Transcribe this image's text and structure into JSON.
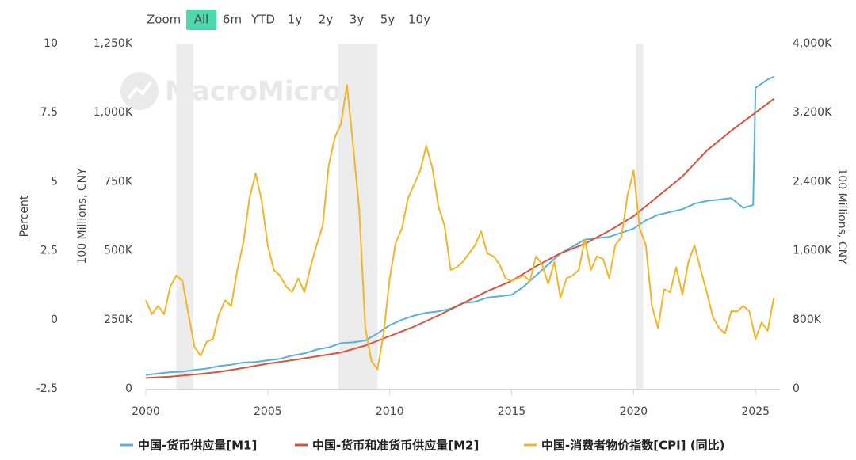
{
  "chart_data": {
    "type": "line",
    "zoom_label": "Zoom",
    "range_buttons": [
      "All",
      "6m",
      "YTD",
      "1y",
      "2y",
      "3y",
      "5y",
      "10y"
    ],
    "selected_button": 0,
    "selected_color": "#4fd8ab",
    "watermark": "MacroMicro",
    "xlim": [
      2000,
      2026
    ],
    "xticks": [
      2000,
      2005,
      2010,
      2015,
      2020,
      2025
    ],
    "ylim": [
      -2.5,
      10
    ],
    "yticks": [
      -2.5,
      0,
      2.5,
      5,
      7.5,
      10
    ],
    "y_label": "Percent",
    "y2lim": [
      0,
      1250000
    ],
    "y2ticks": [
      0,
      {
        "value": 250000,
        "label": "250K"
      },
      {
        "value": 500000,
        "label": "500K"
      },
      {
        "value": 750000,
        "label": "750K"
      },
      {
        "value": 1000000,
        "label": "1,000K"
      },
      {
        "value": 1250000,
        "label": "1,250K"
      }
    ],
    "y2_label": "100 Millions, CNY",
    "y3lim": [
      0,
      4000000
    ],
    "y3ticks": [
      0,
      {
        "value": 800000,
        "label": "800K"
      },
      {
        "value": 1600000,
        "label": "1,600K"
      },
      {
        "value": 2400000,
        "label": "2,400K"
      },
      {
        "value": 3200000,
        "label": "3,200K"
      },
      {
        "value": 4000000,
        "label": "4,000K"
      }
    ],
    "y3_label": "100 Millions, CNY",
    "grid": false,
    "band_color": "#ececec",
    "bands": [
      {
        "from": 2001.25,
        "to": 2001.95
      },
      {
        "from": 2007.9,
        "to": 2009.5
      },
      {
        "from": 2020.1,
        "to": 2020.4
      }
    ],
    "series": [
      {
        "name": "中国-货币供应量[M1]",
        "color": "#5ab0d6",
        "axis": "y2",
        "x": [
          2000,
          2000.5,
          2001,
          2001.5,
          2002,
          2002.5,
          2003,
          2003.5,
          2004,
          2004.5,
          2005,
          2005.5,
          2006,
          2006.5,
          2007,
          2007.5,
          2008,
          2008.5,
          2009,
          2009.5,
          2010,
          2010.5,
          2011,
          2011.5,
          2012,
          2012.5,
          2013,
          2013.5,
          2014,
          2014.5,
          2015,
          2015.5,
          2016,
          2016.5,
          2017,
          2017.5,
          2018,
          2018.5,
          2019,
          2019.5,
          2020,
          2020.5,
          2021,
          2021.5,
          2022,
          2022.5,
          2023,
          2023.5,
          2024,
          2024.5,
          2024.9,
          2025,
          2025.5,
          2025.75
        ],
        "values": [
          50000,
          55000,
          60000,
          62000,
          68000,
          73000,
          82000,
          87000,
          95000,
          97000,
          103000,
          108000,
          120000,
          128000,
          142000,
          150000,
          165000,
          168000,
          175000,
          200000,
          230000,
          250000,
          265000,
          275000,
          280000,
          290000,
          310000,
          315000,
          330000,
          335000,
          340000,
          370000,
          410000,
          450000,
          490000,
          515000,
          540000,
          545000,
          550000,
          565000,
          580000,
          610000,
          630000,
          640000,
          650000,
          670000,
          680000,
          685000,
          690000,
          655000,
          665000,
          1090000,
          1120000,
          1130000
        ]
      },
      {
        "name": "中国-货币和准货币供应量[M2]",
        "color": "#d9533d",
        "axis": "y3",
        "x": [
          2000,
          2001,
          2002,
          2003,
          2004,
          2005,
          2006,
          2007,
          2008,
          2009,
          2010,
          2011,
          2012,
          2013,
          2014,
          2015,
          2016,
          2017,
          2018,
          2019,
          2020,
          2021,
          2022,
          2023,
          2024,
          2025,
          2025.75
        ],
        "values": [
          125000,
          140000,
          165000,
          195000,
          240000,
          290000,
          330000,
          375000,
          420000,
          500000,
          610000,
          720000,
          850000,
          990000,
          1130000,
          1250000,
          1420000,
          1570000,
          1680000,
          1830000,
          2000000,
          2230000,
          2460000,
          2760000,
          2990000,
          3200000,
          3360000
        ]
      },
      {
        "name": "中国-消费者物价指数[CPI] (同比)",
        "color": "#f0b52a",
        "axis": "y",
        "x": [
          2000,
          2000.25,
          2000.5,
          2000.75,
          2001,
          2001.25,
          2001.5,
          2001.75,
          2002,
          2002.25,
          2002.5,
          2002.75,
          2003,
          2003.25,
          2003.5,
          2003.75,
          2004,
          2004.25,
          2004.5,
          2004.75,
          2005,
          2005.25,
          2005.5,
          2005.75,
          2006,
          2006.25,
          2006.5,
          2006.75,
          2007,
          2007.25,
          2007.5,
          2007.75,
          2008,
          2008.25,
          2008.5,
          2008.75,
          2009,
          2009.25,
          2009.5,
          2009.75,
          2010,
          2010.25,
          2010.5,
          2010.75,
          2011,
          2011.25,
          2011.5,
          2011.75,
          2012,
          2012.25,
          2012.5,
          2012.75,
          2013,
          2013.25,
          2013.5,
          2013.75,
          2014,
          2014.25,
          2014.5,
          2014.75,
          2015,
          2015.25,
          2015.5,
          2015.75,
          2016,
          2016.25,
          2016.5,
          2016.75,
          2017,
          2017.25,
          2017.5,
          2017.75,
          2018,
          2018.25,
          2018.5,
          2018.75,
          2019,
          2019.25,
          2019.5,
          2019.75,
          2020,
          2020.25,
          2020.5,
          2020.75,
          2021,
          2021.25,
          2021.5,
          2021.75,
          2022,
          2022.25,
          2022.5,
          2022.75,
          2023,
          2023.25,
          2023.5,
          2023.75,
          2024,
          2024.25,
          2024.5,
          2024.75,
          2025,
          2025.25,
          2025.5,
          2025.75
        ],
        "values": [
          0.7,
          0.2,
          0.5,
          0.2,
          1.2,
          1.6,
          1.4,
          0.2,
          -1.0,
          -1.3,
          -0.8,
          -0.7,
          0.2,
          0.7,
          0.5,
          1.8,
          2.8,
          4.4,
          5.3,
          4.3,
          2.7,
          1.8,
          1.6,
          1.2,
          1.0,
          1.5,
          1.0,
          1.9,
          2.7,
          3.4,
          5.6,
          6.6,
          7.1,
          8.5,
          6.3,
          4.0,
          -0.3,
          -1.5,
          -1.8,
          -0.5,
          1.5,
          2.8,
          3.3,
          4.4,
          4.9,
          5.4,
          6.3,
          5.5,
          4.1,
          3.4,
          1.8,
          1.9,
          2.1,
          2.4,
          2.7,
          3.2,
          2.4,
          2.3,
          2.0,
          1.5,
          1.4,
          1.5,
          1.6,
          1.4,
          2.3,
          2.0,
          1.3,
          2.1,
          0.8,
          1.5,
          1.6,
          1.8,
          2.9,
          1.8,
          2.3,
          2.2,
          1.5,
          2.7,
          3.0,
          4.5,
          5.4,
          3.3,
          2.7,
          0.5,
          -0.3,
          1.1,
          1.0,
          1.9,
          0.9,
          2.1,
          2.7,
          1.8,
          1.0,
          0.1,
          -0.3,
          -0.5,
          0.3,
          0.3,
          0.5,
          0.3,
          -0.7,
          -0.1,
          -0.4,
          0.8
        ]
      }
    ]
  }
}
